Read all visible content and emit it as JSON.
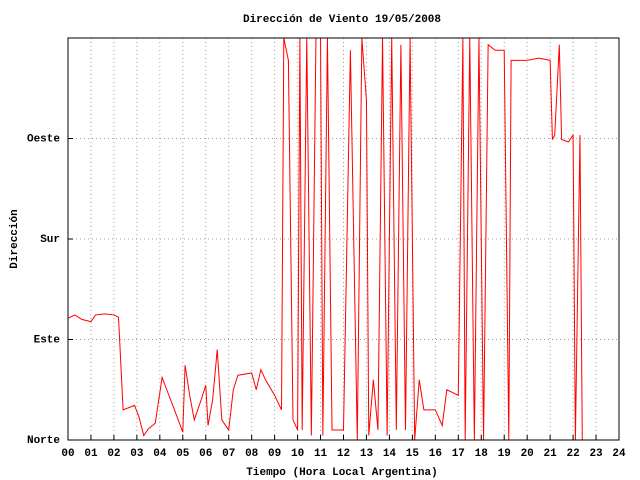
{
  "chart_data": {
    "type": "line",
    "title": "Dirección de Viento 19/05/2008",
    "x_label": "Tiempo (Hora Local Argentina)",
    "y_label": "Dirección",
    "x": [
      0,
      0.3,
      0.6,
      1,
      1.2,
      1.6,
      2.0,
      2.2,
      2.4,
      2.9,
      3.1,
      3.3,
      3.5,
      3.8,
      4.1,
      4.3,
      4.6,
      5.0,
      5.1,
      5.3,
      5.5,
      5.8,
      6.0,
      6.1,
      6.3,
      6.5,
      6.7,
      7.0,
      7.2,
      7.4,
      8.0,
      8.2,
      8.4,
      8.6,
      9.0,
      9.3,
      9.4,
      9.6,
      9.8,
      10.0,
      10.1,
      10.2,
      10.4,
      10.6,
      10.8,
      11.0,
      11.1,
      11.3,
      11.5,
      12.0,
      12.3,
      12.6,
      12.8,
      13.0,
      13.1,
      13.3,
      13.5,
      13.7,
      13.9,
      14.1,
      14.3,
      14.5,
      14.7,
      14.9,
      15.1,
      15.3,
      15.5,
      16.0,
      16.3,
      16.5,
      17.0,
      17.2,
      17.3,
      17.5,
      17.7,
      17.9,
      18.1,
      18.3,
      18.6,
      19.0,
      19.2,
      19.3,
      20.0,
      20.5,
      21.0,
      21.1,
      21.2,
      21.4,
      21.5,
      21.8,
      22.0,
      22.1,
      22.3,
      22.4
    ],
    "series": [
      {
        "name": "Dirección",
        "color": "#ff0000",
        "values": [
          109,
          112,
          108,
          106,
          112,
          113,
          112,
          110,
          27,
          31,
          20,
          4,
          10,
          15,
          56,
          45,
          29,
          7,
          67,
          40,
          18,
          36,
          49,
          13,
          36,
          81,
          18,
          9,
          45,
          58,
          60,
          45,
          63,
          54,
          40,
          27,
          360,
          340,
          18,
          9,
          360,
          9,
          360,
          4,
          360,
          360,
          4,
          360,
          9,
          9,
          349,
          0,
          360,
          304,
          4,
          54,
          9,
          360,
          4,
          360,
          9,
          354,
          9,
          360,
          0,
          54,
          27,
          27,
          13,
          45,
          40,
          360,
          0,
          360,
          0,
          360,
          0,
          354,
          349,
          349,
          0,
          340,
          340,
          342,
          340,
          269,
          273,
          354,
          269,
          267,
          273,
          0,
          273,
          0
        ]
      }
    ],
    "xlim": [
      0,
      24
    ],
    "xticks": [
      {
        "value": 0,
        "label": "00"
      },
      {
        "value": 1,
        "label": "01"
      },
      {
        "value": 2,
        "label": "02"
      },
      {
        "value": 3,
        "label": "03"
      },
      {
        "value": 4,
        "label": "04"
      },
      {
        "value": 5,
        "label": "05"
      },
      {
        "value": 6,
        "label": "06"
      },
      {
        "value": 7,
        "label": "07"
      },
      {
        "value": 8,
        "label": "08"
      },
      {
        "value": 9,
        "label": "09"
      },
      10,
      11,
      12,
      13,
      14,
      15,
      16,
      17,
      18,
      19,
      20,
      21,
      22,
      23,
      24
    ],
    "ylim": [
      0,
      360
    ],
    "yticks": [
      {
        "value": 0,
        "label": "Norte"
      },
      {
        "value": 90,
        "label": "Este"
      },
      {
        "value": 180,
        "label": "Sur"
      },
      {
        "value": 270,
        "label": "Oeste"
      }
    ],
    "grid": true
  }
}
